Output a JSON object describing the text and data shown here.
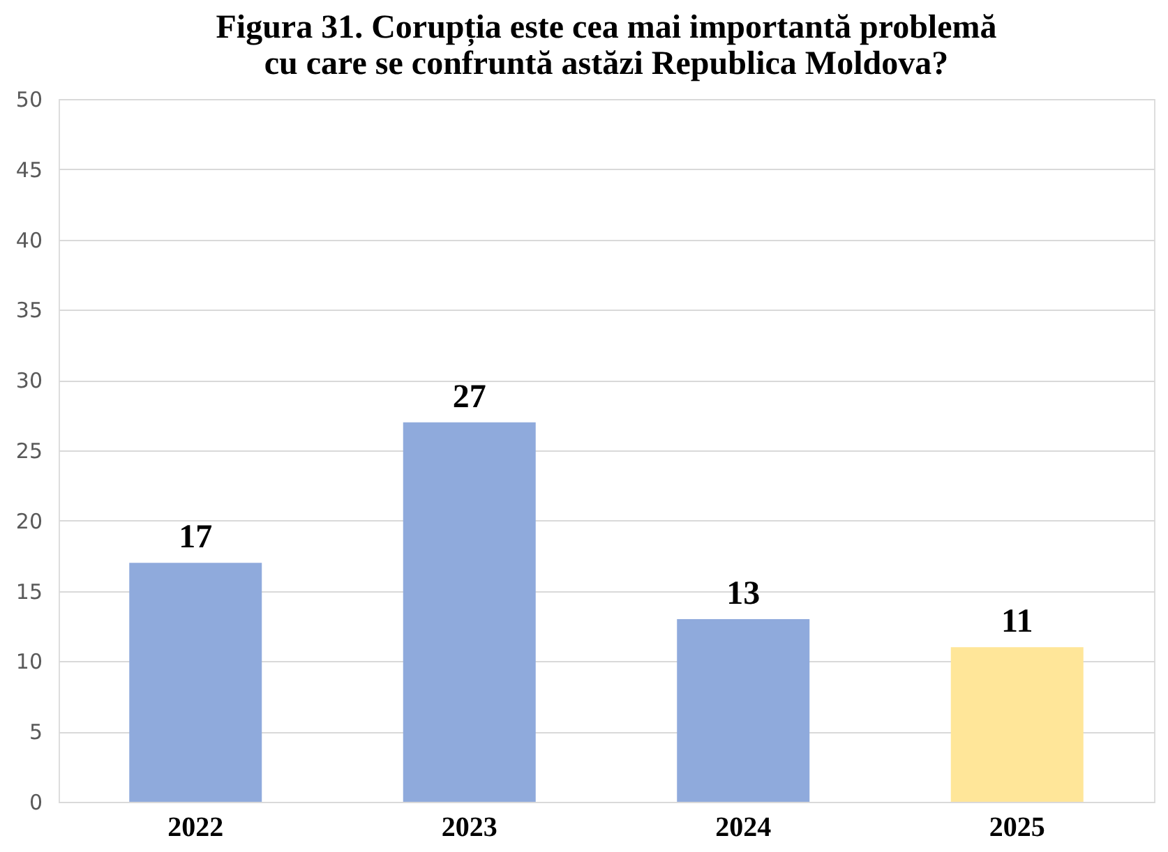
{
  "chart_data": {
    "type": "bar",
    "title": "Figura 31. Corupția este cea mai importantă problemă cu care se confruntă astăzi Republica Moldova?",
    "categories": [
      "2022",
      "2023",
      "2024",
      "2025"
    ],
    "values": [
      17,
      27,
      13,
      11
    ],
    "colors": [
      "#8faadc",
      "#8faadc",
      "#8faadc",
      "#ffe699"
    ],
    "ylim": [
      0,
      50
    ],
    "yticks": [
      0,
      5,
      10,
      15,
      20,
      25,
      30,
      35,
      40,
      45,
      50
    ],
    "grid": "y",
    "data_labels": true
  }
}
